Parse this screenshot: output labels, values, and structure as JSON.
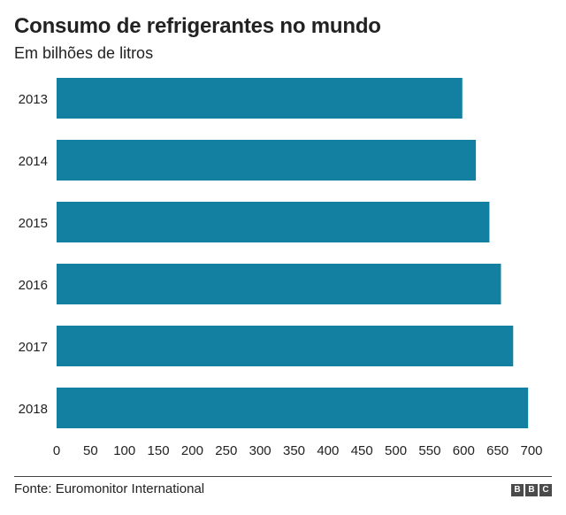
{
  "chart_data": {
    "type": "bar",
    "orientation": "horizontal",
    "title": "Consumo de refrigerantes no mundo",
    "subtitle": "Em bilhões de litros",
    "categories": [
      "2013",
      "2014",
      "2015",
      "2016",
      "2017",
      "2018"
    ],
    "values": [
      598,
      618,
      638,
      655,
      673,
      695
    ],
    "xlim": [
      0,
      700
    ],
    "xticks": [
      0,
      50,
      100,
      150,
      200,
      250,
      300,
      350,
      400,
      450,
      500,
      550,
      600,
      650,
      700
    ],
    "bar_color": "#1380a1",
    "grid": false,
    "source": "Fonte: Euromonitor International"
  },
  "branding": {
    "logo_letters": [
      "B",
      "B",
      "C"
    ]
  }
}
